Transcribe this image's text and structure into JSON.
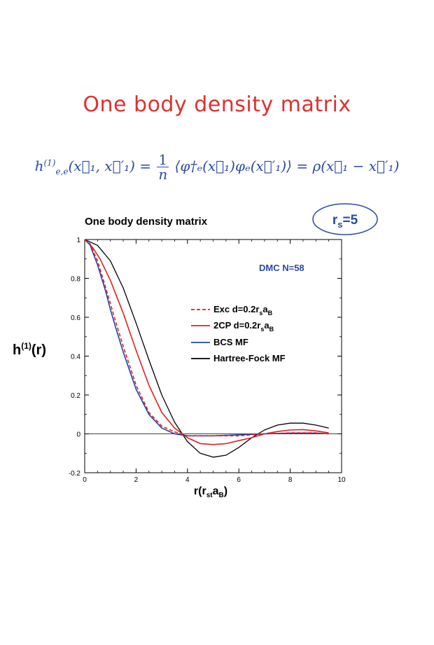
{
  "slide": {
    "title": "One body density matrix",
    "equation": {
      "lhs": "h",
      "lhs_sup": "(1)",
      "lhs_sub": "e,e",
      "lhs_args": "(x⃗₁, x⃗′₁) =",
      "frac_num": "1",
      "frac_den": "n",
      "mid": "⟨φ†ₑ(x⃗₁)φₑ(x⃗′₁)⟩ = ρ(x⃗₁ − x⃗′₁)"
    }
  },
  "chart_data": {
    "type": "line",
    "title": "One body density matrix",
    "ylabel": "h(1)(r)",
    "xlabel": "r(rsaB)",
    "xlim": [
      0,
      10
    ],
    "ylim": [
      -0.2,
      1
    ],
    "x_ticks": [
      0,
      2,
      4,
      6,
      8,
      10
    ],
    "y_ticks": [
      -0.2,
      0,
      0.2,
      0.4,
      0.6,
      0.8,
      1
    ],
    "x_tick_labels": [
      "0",
      "2",
      "4",
      "6",
      "8",
      "10"
    ],
    "y_tick_labels": [
      "-0.2",
      "0",
      "0.2",
      "0.4",
      "0.6",
      "0.8",
      "1"
    ],
    "rs_badge": "rs=5",
    "annotation": "DMC N=58",
    "legend_position": "center-right",
    "series": [
      {
        "name": "Exc d=0.2rsaB",
        "color": "#e02020",
        "dash": true,
        "x": [
          0,
          0.2,
          0.5,
          0.8,
          1.0,
          1.2,
          1.5,
          2.0,
          2.5,
          3.0,
          3.5,
          4.0,
          4.5,
          5.0,
          6.0,
          7.0,
          8.0,
          9.0,
          9.5
        ],
        "y": [
          1.0,
          0.98,
          0.89,
          0.76,
          0.67,
          0.58,
          0.45,
          0.25,
          0.11,
          0.04,
          0.01,
          -0.01,
          -0.01,
          -0.01,
          -0.01,
          0.0,
          0.005,
          0.005,
          0.0
        ]
      },
      {
        "name": "2CP d=0.2rsaB",
        "color": "#e02020",
        "dash": false,
        "x": [
          0,
          0.3,
          0.6,
          1.0,
          1.5,
          2.0,
          2.5,
          3.0,
          3.5,
          4.0,
          4.5,
          5.0,
          5.5,
          6.0,
          6.5,
          7.0,
          7.5,
          8.0,
          8.5,
          9.0,
          9.5
        ],
        "y": [
          1.0,
          0.96,
          0.9,
          0.79,
          0.62,
          0.43,
          0.25,
          0.11,
          0.03,
          -0.02,
          -0.05,
          -0.055,
          -0.05,
          -0.035,
          -0.02,
          0.0,
          0.012,
          0.02,
          0.022,
          0.015,
          0.005
        ]
      },
      {
        "name": "BCS MF",
        "color": "#2040b0",
        "dash": false,
        "x": [
          0,
          0.2,
          0.5,
          0.8,
          1.0,
          1.2,
          1.5,
          2.0,
          2.5,
          3.0,
          3.5,
          4.0,
          5.0,
          6.0,
          7.0,
          8.0,
          9.0,
          9.5
        ],
        "y": [
          1.0,
          0.975,
          0.87,
          0.74,
          0.64,
          0.55,
          0.42,
          0.23,
          0.1,
          0.03,
          0.0,
          -0.01,
          -0.01,
          -0.005,
          0.0,
          0.004,
          0.004,
          0.0
        ]
      },
      {
        "name": "Hartree-Fock MF",
        "color": "#000000",
        "dash": false,
        "x": [
          0,
          0.5,
          1.0,
          1.5,
          2.0,
          2.5,
          3.0,
          3.5,
          4.0,
          4.5,
          5.0,
          5.5,
          6.0,
          6.5,
          7.0,
          7.5,
          8.0,
          8.5,
          9.0,
          9.5
        ],
        "y": [
          1.0,
          0.97,
          0.89,
          0.75,
          0.57,
          0.38,
          0.2,
          0.06,
          -0.04,
          -0.1,
          -0.12,
          -0.11,
          -0.07,
          -0.02,
          0.02,
          0.045,
          0.055,
          0.055,
          0.045,
          0.03
        ]
      }
    ]
  }
}
